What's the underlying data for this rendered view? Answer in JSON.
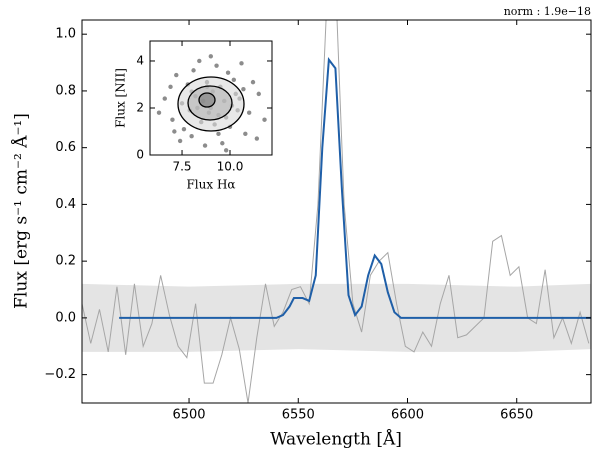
{
  "chart_data": [
    {
      "type": "line",
      "annotation": "norm : 1.9e−18",
      "xlabel": "Wavelength [Å]",
      "ylabel": "Flux [erg s⁻¹ cm⁻² Å⁻¹]",
      "xlim": [
        6451,
        6684
      ],
      "ylim": [
        -0.3,
        1.05
      ],
      "xticks": [
        6500,
        6550,
        6600,
        6650
      ],
      "yticks": [
        {
          "value": -0.2,
          "label": "−0.2"
        },
        {
          "value": 0,
          "label": "0.0"
        },
        0.2,
        0.4,
        0.6,
        0.8,
        {
          "value": 1,
          "label": "1.0"
        }
      ],
      "band": {
        "color": "#e4e4e4",
        "x": [
          6451,
          6500,
          6550,
          6600,
          6650,
          6684
        ],
        "upper": [
          0.12,
          0.11,
          0.12,
          0.12,
          0.11,
          0.12
        ],
        "lower": [
          -0.12,
          -0.12,
          -0.11,
          -0.12,
          -0.12,
          -0.11
        ]
      },
      "series": [
        {
          "color": "#a6a6a6",
          "x": [
            6451,
            6455,
            6459,
            6463,
            6467,
            6471,
            6475,
            6479,
            6483,
            6487,
            6491,
            6495,
            6499,
            6503,
            6507,
            6511,
            6515,
            6519,
            6523,
            6527,
            6531,
            6535,
            6539,
            6543,
            6547,
            6551,
            6555,
            6559,
            6563,
            6567,
            6571,
            6575,
            6579,
            6583,
            6587,
            6591,
            6595,
            6599,
            6603,
            6607,
            6611,
            6615,
            6619,
            6623,
            6627,
            6631,
            6635,
            6639,
            6643,
            6647,
            6651,
            6655,
            6659,
            6663,
            6667,
            6671,
            6675,
            6679,
            6683
          ],
          "values": [
            0.05,
            -0.09,
            0.03,
            -0.12,
            0.11,
            -0.13,
            0.12,
            -0.1,
            -0.02,
            0.15,
            0.01,
            -0.1,
            -0.14,
            0.05,
            -0.23,
            -0.23,
            -0.13,
            0.0,
            -0.11,
            -0.3,
            -0.07,
            0.12,
            -0.03,
            0.02,
            0.1,
            0.11,
            0.05,
            0.4,
            1.1,
            1.2,
            0.4,
            0.05,
            -0.05,
            0.15,
            0.2,
            0.23,
            0.05,
            -0.1,
            -0.12,
            -0.05,
            -0.1,
            0.05,
            0.15,
            -0.07,
            -0.06,
            -0.03,
            0.0,
            0.27,
            0.29,
            0.15,
            0.18,
            0.0,
            -0.02,
            0.17,
            -0.07,
            0.0,
            -0.09,
            0.02,
            -0.09
          ]
        },
        {
          "color": "#1f5fa8",
          "x": [
            6468,
            6540,
            6543,
            6546,
            6548,
            6552,
            6555,
            6558,
            6561,
            6564,
            6567,
            6570,
            6573,
            6576,
            6579,
            6582,
            6585,
            6588,
            6591,
            6594,
            6597,
            6684
          ],
          "values": [
            0,
            0,
            0.01,
            0.04,
            0.07,
            0.07,
            0.06,
            0.15,
            0.6,
            0.91,
            0.88,
            0.45,
            0.08,
            0.01,
            0.04,
            0.15,
            0.22,
            0.19,
            0.09,
            0.02,
            0,
            0
          ]
        }
      ]
    },
    {
      "type": "scatter",
      "xlabel": "Flux Hα",
      "ylabel": "Flux [NII]",
      "xlim": [
        5.83,
        12.19
      ],
      "ylim": [
        0,
        4.85
      ],
      "xticks": [
        7.5,
        {
          "value": 10,
          "label": "10.0"
        }
      ],
      "yticks": [
        0,
        2,
        4
      ],
      "color": "#000000",
      "x": [
        9.0,
        8.2,
        9.8,
        7.5,
        10.5,
        8.8,
        9.4,
        7.0,
        11.0,
        8.0,
        10.2,
        9.1,
        8.5,
        9.7,
        7.8,
        10.8,
        6.6,
        11.5,
        9.3,
        8.7,
        7.2,
        10.0,
        8.9,
        9.5,
        8.3,
        10.4,
        7.6,
        11.2,
        6.9,
        9.9,
        8.1,
        9.2,
        10.7,
        7.4,
        9.6,
        8.6,
        10.1,
        7.9,
        11.8,
        6.3,
        9.0,
        8.4,
        10.6,
        9.8,
        7.1,
        11.4,
        8.0,
        9.4,
        10.3,
        8.8
      ],
      "y": [
        2.0,
        2.5,
        1.6,
        2.2,
        2.4,
        3.1,
        0.9,
        1.5,
        1.8,
        0.8,
        3.2,
        2.7,
        1.4,
        2.3,
        3.0,
        0.9,
        2.4,
        2.6,
        3.8,
        0.4,
        3.4,
        1.2,
        1.8,
        2.9,
        2.0,
        1.9,
        1.1,
        3.1,
        2.9,
        3.5,
        3.6,
        1.3,
        2.8,
        0.6,
        0.5,
        2.3,
        2.1,
        1.9,
        1.5,
        1.8,
        4.2,
        4.0,
        3.9,
        0.2,
        1.0,
        0.7,
        2.7,
        1.7,
        2.6,
        2.9
      ]
    }
  ]
}
